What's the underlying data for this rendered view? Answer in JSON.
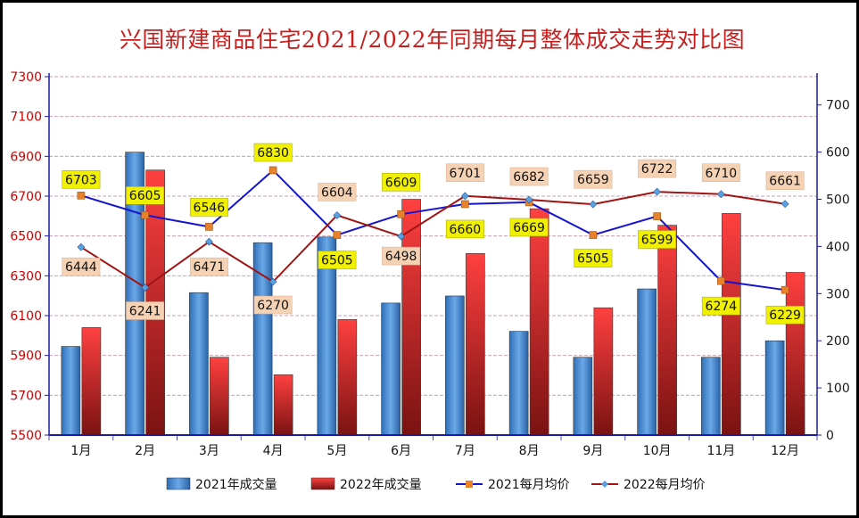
{
  "chart_data": {
    "type": "bar",
    "title": "兴国新建商品住宅2021/2022年同期每月整体成交走势对比图",
    "categories": [
      "1月",
      "2月",
      "3月",
      "4月",
      "5月",
      "6月",
      "7月",
      "8月",
      "9月",
      "10月",
      "11月",
      "12月"
    ],
    "y_left": {
      "ticks": [
        5500,
        5700,
        5900,
        6100,
        6300,
        6500,
        6700,
        6900,
        7100,
        7300
      ],
      "ylim": [
        5500,
        7300
      ],
      "color": "#cc0000"
    },
    "y_right": {
      "ticks": [
        0,
        100,
        200,
        300,
        400,
        500,
        600,
        700
      ],
      "ylim": [
        0,
        760
      ],
      "color": "#1a1aa6"
    },
    "series": [
      {
        "name": "2021年成交量",
        "kind": "bar",
        "axis": "right",
        "color": "#4a8fd8",
        "values": [
          188,
          600,
          302,
          408,
          420,
          280,
          295,
          220,
          165,
          310,
          165,
          200
        ]
      },
      {
        "name": "2022年成交量",
        "kind": "bar",
        "axis": "right",
        "color": "#e03a3a",
        "values": [
          228,
          562,
          165,
          128,
          245,
          500,
          385,
          480,
          270,
          445,
          470,
          345
        ]
      },
      {
        "name": "2021每月均价",
        "kind": "line",
        "axis": "left",
        "color": "#1414d2",
        "marker": "square",
        "marker_color": "#e8822a",
        "values": [
          6703,
          6605,
          6546,
          6830,
          6505,
          6609,
          6660,
          6669,
          6505,
          6599,
          6274,
          6229
        ]
      },
      {
        "name": "2022每月均价",
        "kind": "line",
        "axis": "left",
        "color": "#a01414",
        "marker": "diamond",
        "marker_color": "#5aa0e0",
        "values": [
          6444,
          6241,
          6471,
          6270,
          6604,
          6498,
          6701,
          6682,
          6659,
          6722,
          6710,
          6661
        ]
      }
    ],
    "data_labels": {
      "2021每月均价": [
        "6703",
        "6605",
        "6546",
        "6830",
        "6505",
        "6609",
        "6660",
        "6669",
        "6505",
        "6599",
        "6274",
        "6229"
      ],
      "2022每月均价": [
        "6444",
        "6241",
        "6471",
        "6270",
        "6604",
        "6498",
        "6701",
        "6682",
        "6659",
        "6722",
        "6710",
        "6661"
      ]
    },
    "grid": true,
    "legend_position": "bottom"
  }
}
